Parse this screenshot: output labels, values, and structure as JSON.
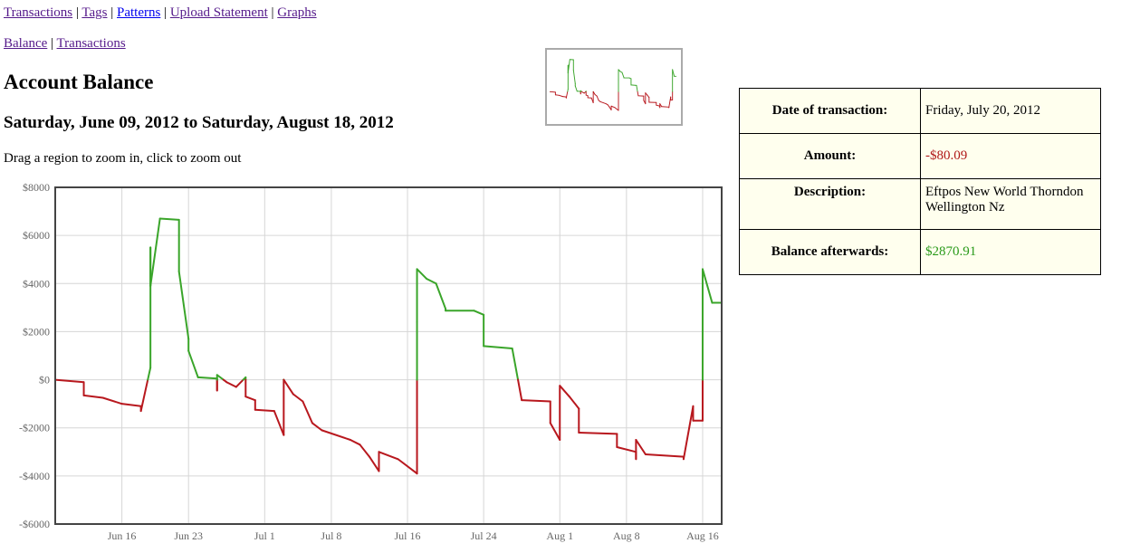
{
  "nav": {
    "main": [
      "Transactions",
      "Tags",
      "Patterns",
      "Upload Statement",
      "Graphs"
    ],
    "sub": [
      "Balance",
      "Transactions"
    ]
  },
  "page": {
    "title": "Account Balance",
    "date_range": "Saturday, June 09, 2012 to Saturday, August 18, 2012",
    "hint": "Drag a region to zoom in, click to zoom out"
  },
  "details": {
    "date_label": "Date of transaction:",
    "date_value": "Friday, July 20, 2012",
    "amount_label": "Amount:",
    "amount_value": "-$80.09",
    "description_label": "Description:",
    "description_value": "Eftpos New World Thorndon Wellington Nz",
    "balance_label": "Balance afterwards:",
    "balance_value": "$2870.91"
  },
  "colors": {
    "positive": "#3aa52a",
    "negative": "#b8181e",
    "amount_text": "#b01818",
    "balance_text": "#2a9a1a"
  },
  "chart_data": {
    "type": "line",
    "title": "",
    "xlabel": "",
    "ylabel": "",
    "x_range": [
      "2012-06-09",
      "2012-08-18"
    ],
    "ylim": [
      -6000,
      8000
    ],
    "y_ticks": [
      -6000,
      -4000,
      -2000,
      0,
      2000,
      4000,
      6000,
      8000
    ],
    "y_tick_labels": [
      "-$6000",
      "-$4000",
      "-$2000",
      "$0",
      "$2000",
      "$4000",
      "$6000",
      "$8000"
    ],
    "x_ticks": [
      "2012-06-16",
      "2012-06-23",
      "2012-07-01",
      "2012-07-08",
      "2012-07-16",
      "2012-07-24",
      "2012-08-01",
      "2012-08-08",
      "2012-08-16"
    ],
    "x_tick_labels": [
      "Jun 16",
      "Jun 23",
      "Jul 1",
      "Jul 8",
      "Jul 16",
      "Jul 24",
      "Aug 1",
      "Aug 8",
      "Aug 16"
    ],
    "grid": true,
    "series": [
      {
        "color_rule": "green when balance >= 0, red when balance < 0",
        "points": [
          [
            "2012-06-09",
            0
          ],
          [
            "2012-06-12",
            -100
          ],
          [
            "2012-06-12",
            -650
          ],
          [
            "2012-06-14",
            -750
          ],
          [
            "2012-06-16",
            -1000
          ],
          [
            "2012-06-18",
            -1100
          ],
          [
            "2012-06-18",
            -1300
          ],
          [
            "2012-06-19",
            500
          ],
          [
            "2012-06-19",
            5500
          ],
          [
            "2012-06-19",
            3900
          ],
          [
            "2012-06-20",
            6700
          ],
          [
            "2012-06-22",
            6650
          ],
          [
            "2012-06-22",
            4500
          ],
          [
            "2012-06-23",
            1700
          ],
          [
            "2012-06-23",
            1200
          ],
          [
            "2012-06-24",
            100
          ],
          [
            "2012-06-26",
            50
          ],
          [
            "2012-06-26",
            -450
          ],
          [
            "2012-06-26",
            200
          ],
          [
            "2012-06-27",
            -100
          ],
          [
            "2012-06-28",
            -300
          ],
          [
            "2012-06-29",
            100
          ],
          [
            "2012-06-29",
            -700
          ],
          [
            "2012-06-30",
            -850
          ],
          [
            "2012-06-30",
            -1250
          ],
          [
            "2012-07-02",
            -1300
          ],
          [
            "2012-07-03",
            -2300
          ],
          [
            "2012-07-03",
            0
          ],
          [
            "2012-07-04",
            -600
          ],
          [
            "2012-07-05",
            -900
          ],
          [
            "2012-07-06",
            -1800
          ],
          [
            "2012-07-07",
            -2100
          ],
          [
            "2012-07-10",
            -2500
          ],
          [
            "2012-07-11",
            -2700
          ],
          [
            "2012-07-12",
            -3200
          ],
          [
            "2012-07-13",
            -3800
          ],
          [
            "2012-07-13",
            -3000
          ],
          [
            "2012-07-15",
            -3300
          ],
          [
            "2012-07-17",
            -3900
          ],
          [
            "2012-07-17",
            2400
          ],
          [
            "2012-07-17",
            4600
          ],
          [
            "2012-07-18",
            4200
          ],
          [
            "2012-07-19",
            4000
          ],
          [
            "2012-07-20",
            2950
          ],
          [
            "2012-07-20",
            2870.91
          ],
          [
            "2012-07-23",
            2870.91
          ],
          [
            "2012-07-24",
            2700
          ],
          [
            "2012-07-24",
            1400
          ],
          [
            "2012-07-27",
            1300
          ],
          [
            "2012-07-28",
            -850
          ],
          [
            "2012-07-31",
            -900
          ],
          [
            "2012-07-31",
            -1800
          ],
          [
            "2012-08-01",
            -2500
          ],
          [
            "2012-08-01",
            -250
          ],
          [
            "2012-08-02",
            -700
          ],
          [
            "2012-08-03",
            -1200
          ],
          [
            "2012-08-03",
            -2200
          ],
          [
            "2012-08-07",
            -2250
          ],
          [
            "2012-08-07",
            -2800
          ],
          [
            "2012-08-09",
            -3000
          ],
          [
            "2012-08-09",
            -3300
          ],
          [
            "2012-08-09",
            -2500
          ],
          [
            "2012-08-10",
            -3100
          ],
          [
            "2012-08-14",
            -3200
          ],
          [
            "2012-08-14",
            -3300
          ],
          [
            "2012-08-15",
            -1100
          ],
          [
            "2012-08-15",
            -1700
          ],
          [
            "2012-08-16",
            -1700
          ],
          [
            "2012-08-16",
            4600
          ],
          [
            "2012-08-17",
            3200
          ],
          [
            "2012-08-18",
            3200
          ]
        ]
      }
    ]
  }
}
